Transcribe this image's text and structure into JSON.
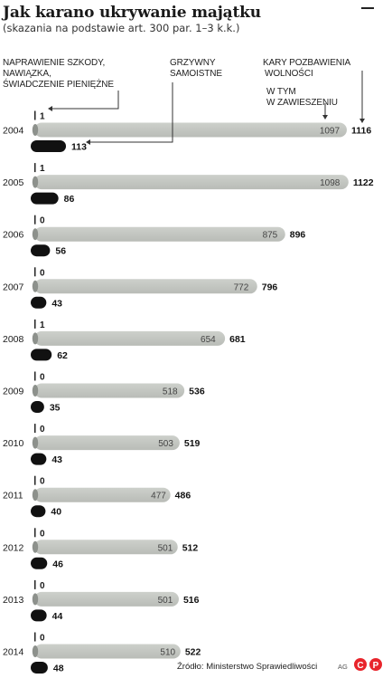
{
  "title": "Jak karano ukrywanie majątku",
  "subtitle": "(skazania na podstawie art. 300 par. 1–3 k.k.)",
  "legend": {
    "naprawienie": [
      "NAPRAWIENIE SZKODY,",
      "NAWIĄZKA,",
      "ŚWIADCZENIE PIENIĘŻNE"
    ],
    "grzywny": [
      "GRZYWNY",
      "SAMOISTNE"
    ],
    "kary": [
      "KARY POZBAWIENIA",
      "WOLNOŚCI"
    ],
    "zawieszenie": [
      "W TYM",
      "W ZAWIESZENIU"
    ]
  },
  "source": "Źródło: Ministerstwo Sprawiedliwości",
  "author": "AG",
  "logo_text": "©℗",
  "colors": {
    "kary_bar": "#cdd0cb",
    "kary_bar_end": "#b9bcb7",
    "grzywny_bar": "#111111",
    "naprawienie_tick": "#222222",
    "axis_oval": "#8d918c"
  },
  "chart_data": {
    "type": "bar",
    "title": "Jak karano ukrywanie majątku",
    "subtitle": "(skazania na podstawie art. 300 par. 1–3 k.k.)",
    "categories": [
      "2004",
      "2005",
      "2006",
      "2007",
      "2008",
      "2009",
      "2010",
      "2011",
      "2012",
      "2013",
      "2014"
    ],
    "series": [
      {
        "name": "NAPRAWIENIE SZKODY, NAWIĄZKA, ŚWIADCZENIE PIENIĘŻNE",
        "values": [
          1,
          1,
          0,
          0,
          1,
          0,
          0,
          0,
          0,
          0,
          0
        ]
      },
      {
        "name": "KARY POZBAWIENIA WOLNOŚCI",
        "values": [
          1116,
          1122,
          896,
          796,
          681,
          536,
          519,
          486,
          512,
          516,
          522
        ]
      },
      {
        "name": "W TYM W ZAWIESZENIU",
        "values": [
          1097,
          1098,
          875,
          772,
          654,
          518,
          503,
          477,
          501,
          501,
          510
        ]
      },
      {
        "name": "GRZYWNY SAMOISTNE",
        "values": [
          113,
          86,
          56,
          43,
          62,
          35,
          43,
          40,
          46,
          44,
          48
        ]
      }
    ],
    "orientation": "horizontal",
    "grid": false,
    "legend_position": "top"
  }
}
